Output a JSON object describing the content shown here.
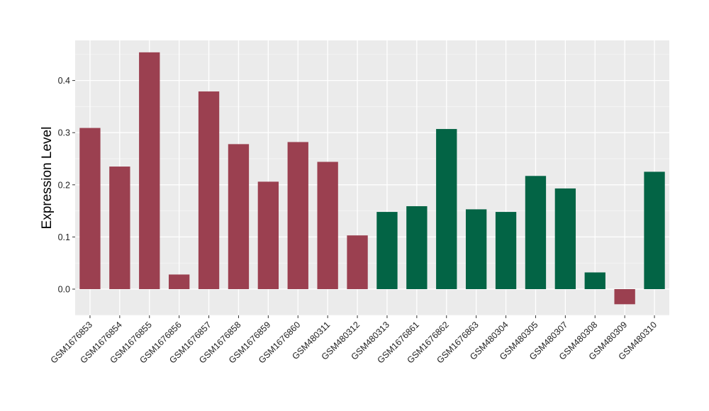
{
  "chart_data": {
    "type": "bar",
    "title": "",
    "xlabel": "",
    "ylabel": "Expression Level",
    "ylim": [
      -0.05,
      0.475
    ],
    "yticks": [
      0.0,
      0.1,
      0.2,
      0.3,
      0.4
    ],
    "ytick_labels": [
      "0.0",
      "0.1",
      "0.2",
      "0.3",
      "0.4"
    ],
    "grid": true,
    "legend": "none",
    "background_color": "#ebebeb",
    "categories": [
      "GSM1676853",
      "GSM1676854",
      "GSM1676855",
      "GSM1676856",
      "GSM1676857",
      "GSM1676858",
      "GSM1676859",
      "GSM1676860",
      "GSM480311",
      "GSM480312",
      "GSM480313",
      "GSM1676861",
      "GSM1676862",
      "GSM1676863",
      "GSM480304",
      "GSM480305",
      "GSM480307",
      "GSM480308",
      "GSM480309",
      "GSM480310"
    ],
    "values": [
      0.309,
      0.235,
      0.454,
      0.028,
      0.379,
      0.278,
      0.206,
      0.282,
      0.244,
      0.103,
      0.148,
      0.159,
      0.307,
      0.153,
      0.148,
      0.217,
      0.193,
      0.032,
      -0.029,
      0.225
    ],
    "group_colors": {
      "a": "#9b4050",
      "b": "#036445"
    },
    "bar_groups": [
      "a",
      "a",
      "a",
      "a",
      "a",
      "a",
      "a",
      "a",
      "a",
      "a",
      "b",
      "b",
      "b",
      "b",
      "b",
      "b",
      "b",
      "b",
      "a",
      "b"
    ]
  }
}
